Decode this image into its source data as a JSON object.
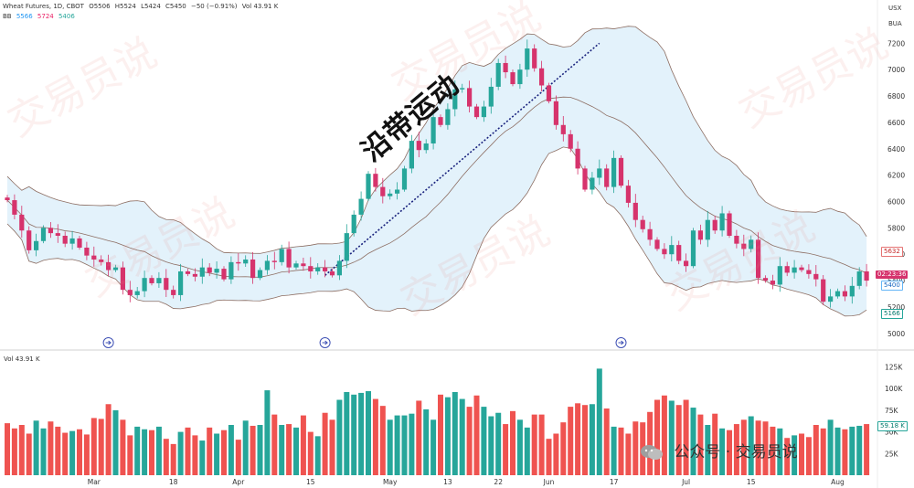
{
  "header": {
    "symbol_line": "Wheat Futures, 1D, CBOT",
    "ohlc": [
      "O5506",
      "H5524",
      "L5424",
      "C5450",
      "−50 (−0.91%)"
    ],
    "vol": "Vol 43.91 K",
    "bb_label": "BB",
    "bb_values": [
      "5566",
      "5724",
      "5406"
    ]
  },
  "currency": "USX",
  "bu_label": "BUA",
  "annotation": "沿带运动",
  "watermark": "交易员说",
  "brand_text": "公众号 · 交易员说",
  "price_tags": {
    "upper": "5632",
    "current": "02:23:36",
    "current_price": "5400",
    "lower": "5166",
    "volume": "59.18 K"
  },
  "volume_label": "Vol  43.91 K",
  "colors": {
    "up_candle": "#26a69a",
    "down_candle": "#d6336c",
    "band_fill": "#e3f2fb",
    "band_line": "#8d6e63",
    "vol_up": "#26a69a",
    "vol_down": "#ef5350"
  },
  "chart_data": {
    "type": "candlestick",
    "price_axis": {
      "ticks": [
        5000,
        5200,
        5400,
        5600,
        5800,
        6000,
        6200,
        6400,
        6600,
        6800,
        7000,
        7200
      ],
      "range": [
        4950,
        7320
      ]
    },
    "volume_axis": {
      "ticks": [
        "125K",
        "100K",
        "75K",
        "50K",
        "25K"
      ],
      "values": [
        125,
        100,
        75,
        50,
        25
      ],
      "range": [
        0,
        135
      ]
    },
    "x_labels": [
      {
        "i": 12,
        "label": "Mar"
      },
      {
        "i": 23,
        "label": "18"
      },
      {
        "i": 32,
        "label": "Apr"
      },
      {
        "i": 42,
        "label": "15"
      },
      {
        "i": 53,
        "label": "May"
      },
      {
        "i": 61,
        "label": "13"
      },
      {
        "i": 68,
        "label": "22"
      },
      {
        "i": 75,
        "label": "Jun"
      },
      {
        "i": 84,
        "label": "17"
      },
      {
        "i": 94,
        "label": "Jul"
      },
      {
        "i": 103,
        "label": "15"
      },
      {
        "i": 115,
        "label": "Aug"
      }
    ],
    "closes": [
      6010,
      5900,
      5780,
      5630,
      5700,
      5800,
      5760,
      5740,
      5680,
      5720,
      5650,
      5590,
      5560,
      5540,
      5480,
      5500,
      5330,
      5290,
      5320,
      5420,
      5380,
      5420,
      5330,
      5290,
      5470,
      5450,
      5430,
      5500,
      5460,
      5490,
      5410,
      5540,
      5530,
      5560,
      5420,
      5480,
      5550,
      5540,
      5640,
      5500,
      5530,
      5510,
      5470,
      5500,
      5470,
      5440,
      5550,
      5760,
      5900,
      6020,
      6210,
      6110,
      6040,
      6060,
      6090,
      6250,
      6460,
      6390,
      6440,
      6640,
      6580,
      6700,
      6850,
      6860,
      6720,
      6640,
      6720,
      6870,
      7050,
      6980,
      6890,
      7000,
      7160,
      7010,
      6880,
      6760,
      6580,
      6510,
      6400,
      6250,
      6090,
      6180,
      6250,
      6110,
      6330,
      6120,
      5990,
      5860,
      5790,
      5710,
      5640,
      5600,
      5670,
      5550,
      5510,
      5780,
      5710,
      5860,
      5780,
      5910,
      5740,
      5680,
      5640,
      5710,
      5420,
      5400,
      5370,
      5510,
      5460,
      5500,
      5480,
      5450,
      5410,
      5240,
      5280,
      5320,
      5280,
      5360,
      5470,
      5400
    ],
    "volumes": [
      60,
      54,
      58,
      48,
      63,
      54,
      62,
      56,
      49,
      51,
      53,
      47,
      66,
      65,
      82,
      75,
      64,
      46,
      56,
      53,
      52,
      56,
      42,
      36,
      50,
      55,
      46,
      40,
      55,
      48,
      52,
      58,
      41,
      63,
      57,
      58,
      98,
      70,
      58,
      59,
      55,
      69,
      50,
      45,
      72,
      64,
      87,
      96,
      93,
      95,
      97,
      88,
      80,
      64,
      69,
      69,
      71,
      86,
      76,
      64,
      93,
      90,
      96,
      88,
      79,
      92,
      79,
      68,
      72,
      59,
      74,
      64,
      55,
      70,
      70,
      42,
      48,
      61,
      79,
      83,
      81,
      82,
      123,
      77,
      56,
      55,
      48,
      62,
      61,
      73,
      87,
      92,
      86,
      81,
      87,
      78,
      70,
      58,
      71,
      54,
      52,
      59,
      64,
      68,
      63,
      62,
      56,
      54,
      43,
      46,
      48,
      44,
      58,
      54,
      64,
      55,
      53,
      56,
      57,
      59
    ]
  }
}
